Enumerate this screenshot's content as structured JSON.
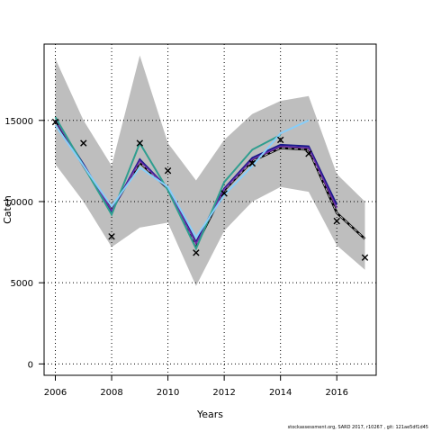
{
  "footer_text": "stockassessment.org, SARD 2017, r10267 , git: 121ae5df1d45",
  "chart_data": {
    "type": "line",
    "xlabel": "Years",
    "ylabel": "Catch",
    "xlim": [
      2005.6,
      2017.4
    ],
    "ylim": [
      -700,
      19700
    ],
    "x_ticks": [
      2006,
      2008,
      2010,
      2012,
      2014,
      2016
    ],
    "y_ticks": [
      0,
      5000,
      10000,
      15000
    ],
    "y_tick_labels": [
      "0",
      "5000",
      "10000",
      "15000"
    ],
    "grid": true,
    "confidence_band": {
      "color": "#bebebe",
      "x": [
        2006,
        2007,
        2008,
        2009,
        2010,
        2011,
        2012,
        2013,
        2014,
        2015,
        2016,
        2017
      ],
      "upper": [
        18800,
        15000,
        12200,
        19000,
        13600,
        11300,
        13800,
        15400,
        16200,
        16500,
        11700,
        10000
      ],
      "lower": [
        12300,
        10000,
        7200,
        8400,
        8700,
        4800,
        8200,
        10000,
        10900,
        10600,
        7300,
        5800
      ]
    },
    "observations": {
      "marker": "x",
      "x": [
        2006,
        2007,
        2008,
        2009,
        2010,
        2011,
        2012,
        2013,
        2014,
        2015,
        2016,
        2017
      ],
      "y": [
        14900,
        13600,
        7850,
        13600,
        11900,
        6850,
        10500,
        12350,
        13800,
        12950,
        8800,
        6550
      ]
    },
    "series": [
      {
        "color": "#000000",
        "dashed": true,
        "width": 2,
        "x": [
          2006,
          2007,
          2008,
          2009,
          2010,
          2011,
          2012,
          2013,
          2014,
          2015,
          2016,
          2017
        ],
        "y": [
          15000,
          12200,
          9500,
          12400,
          10800,
          7300,
          10700,
          12500,
          13300,
          13200,
          9300,
          7700
        ]
      },
      {
        "color": "#1a1a8c",
        "dashed": false,
        "width": 2,
        "x": [
          2006,
          2007,
          2008,
          2009,
          2010,
          2011,
          2012,
          2013,
          2014,
          2015,
          2016
        ],
        "y": [
          15000,
          12300,
          9400,
          12600,
          10800,
          7500,
          10800,
          12700,
          13500,
          13400,
          9800
        ]
      },
      {
        "color": "#6f2da8",
        "dashed": false,
        "width": 1.5,
        "x": [
          2006,
          2007,
          2008,
          2009,
          2010,
          2011,
          2012,
          2013,
          2014,
          2015,
          2016
        ],
        "y": [
          15000,
          12250,
          9450,
          12500,
          10800,
          7400,
          10750,
          12600,
          13400,
          13300,
          9600
        ]
      },
      {
        "color": "#2e9e8f",
        "dashed": false,
        "width": 2,
        "x": [
          2006,
          2007,
          2008,
          2009,
          2010,
          2011,
          2012,
          2013,
          2014
        ],
        "y": [
          15200,
          12200,
          9200,
          13600,
          10700,
          7100,
          11200,
          13200,
          14100
        ]
      },
      {
        "color": "#87cefa",
        "dashed": false,
        "width": 2,
        "x": [
          2006,
          2007,
          2008,
          2009,
          2010,
          2011,
          2012,
          2013,
          2014,
          2015
        ],
        "y": [
          14700,
          12200,
          9700,
          12100,
          10900,
          7800,
          10400,
          12200,
          14200,
          15000
        ]
      }
    ]
  }
}
